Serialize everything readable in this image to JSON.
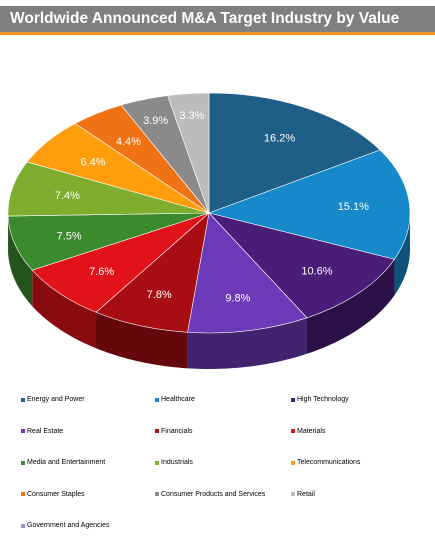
{
  "header": {
    "title": "Worldwide Announced M&A Target Industry by Value"
  },
  "chart_data": {
    "type": "pie",
    "title": "Worldwide Announced M&A Target Industry by Value",
    "slices": [
      {
        "label": "Energy and Power",
        "value": 16.2,
        "value_label": "16.2%",
        "color": "#1f5f87"
      },
      {
        "label": "Healthcare",
        "value": 15.1,
        "value_label": "15.1%",
        "color": "#1589c9"
      },
      {
        "label": "High Technology",
        "value": 10.6,
        "value_label": "10.6%",
        "color": "#4a1d78"
      },
      {
        "label": "Real Estate",
        "value": 9.8,
        "value_label": "9.8%",
        "color": "#6c3ab8"
      },
      {
        "label": "Financials",
        "value": 7.8,
        "value_label": "7.8%",
        "color": "#a80d14"
      },
      {
        "label": "Materials",
        "value": 7.6,
        "value_label": "7.6%",
        "color": "#e2121b"
      },
      {
        "label": "Media and Entertainment",
        "value": 7.5,
        "value_label": "7.5%",
        "color": "#3c8a2e"
      },
      {
        "label": "Industrials",
        "value": 7.4,
        "value_label": "7.4%",
        "color": "#7fae2e"
      },
      {
        "label": "Telecommunications",
        "value": 6.4,
        "value_label": "6.4%",
        "color": "#ff9d0d"
      },
      {
        "label": "Consumer Staples",
        "value": 4.4,
        "value_label": "4.4%",
        "color": "#ef7314"
      },
      {
        "label": "Consumer Products and Services",
        "value": 3.9,
        "value_label": "3.9%",
        "color": "#8a8a8a"
      },
      {
        "label": "Retail",
        "value": 3.3,
        "value_label": "3.3%",
        "color": "#bcbcbc"
      },
      {
        "label": "Government and Agencies",
        "value": 0,
        "value_label": "",
        "color": "#9b8fd4"
      }
    ],
    "legend": {
      "placement": "bottom"
    }
  }
}
